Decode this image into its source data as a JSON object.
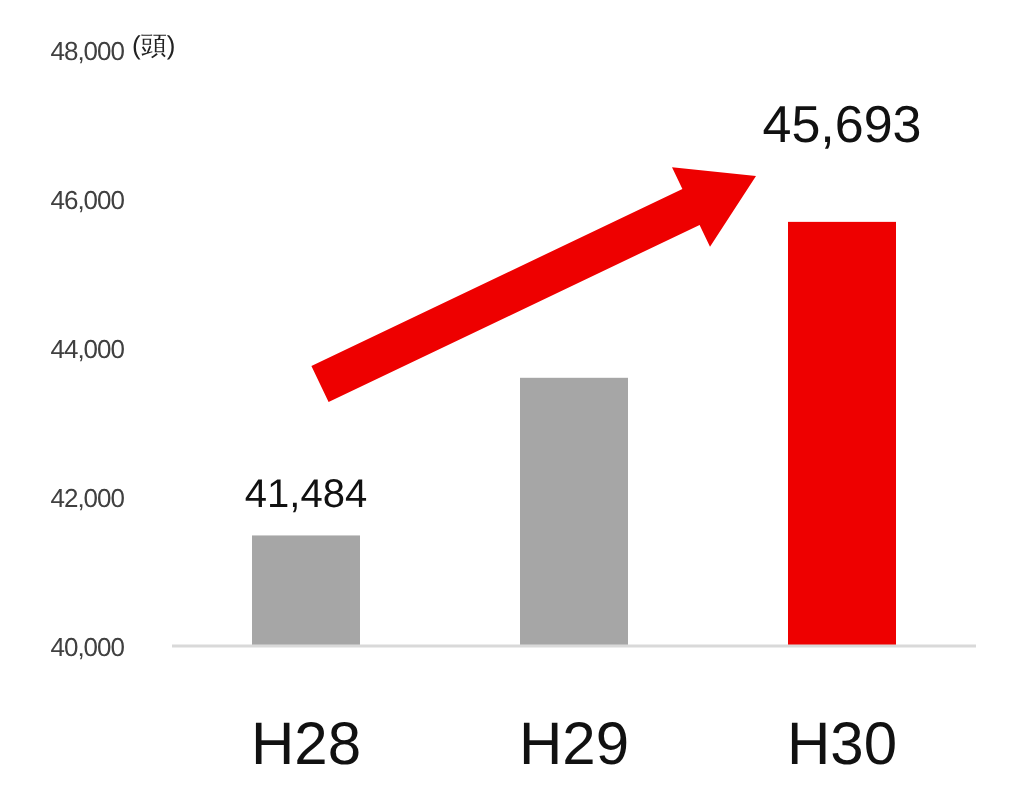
{
  "chart_data": {
    "type": "bar",
    "ylabel": "(頭)",
    "categories": [
      "H28",
      "H29",
      "H30"
    ],
    "values": [
      41484,
      43600,
      45693
    ],
    "colors": [
      "#a6a6a6",
      "#a6a6a6",
      "#ee0000"
    ],
    "value_labels": [
      "41,484",
      null,
      "45,693"
    ],
    "ylim": [
      40000,
      48000
    ],
    "yticks": [
      {
        "value": 40000,
        "label": "40,000"
      },
      {
        "value": 42000,
        "label": "42,000"
      },
      {
        "value": 44000,
        "label": "44,000"
      },
      {
        "value": 46000,
        "label": "46,000"
      },
      {
        "value": 48000,
        "label": "48,000"
      }
    ],
    "grid": false
  }
}
